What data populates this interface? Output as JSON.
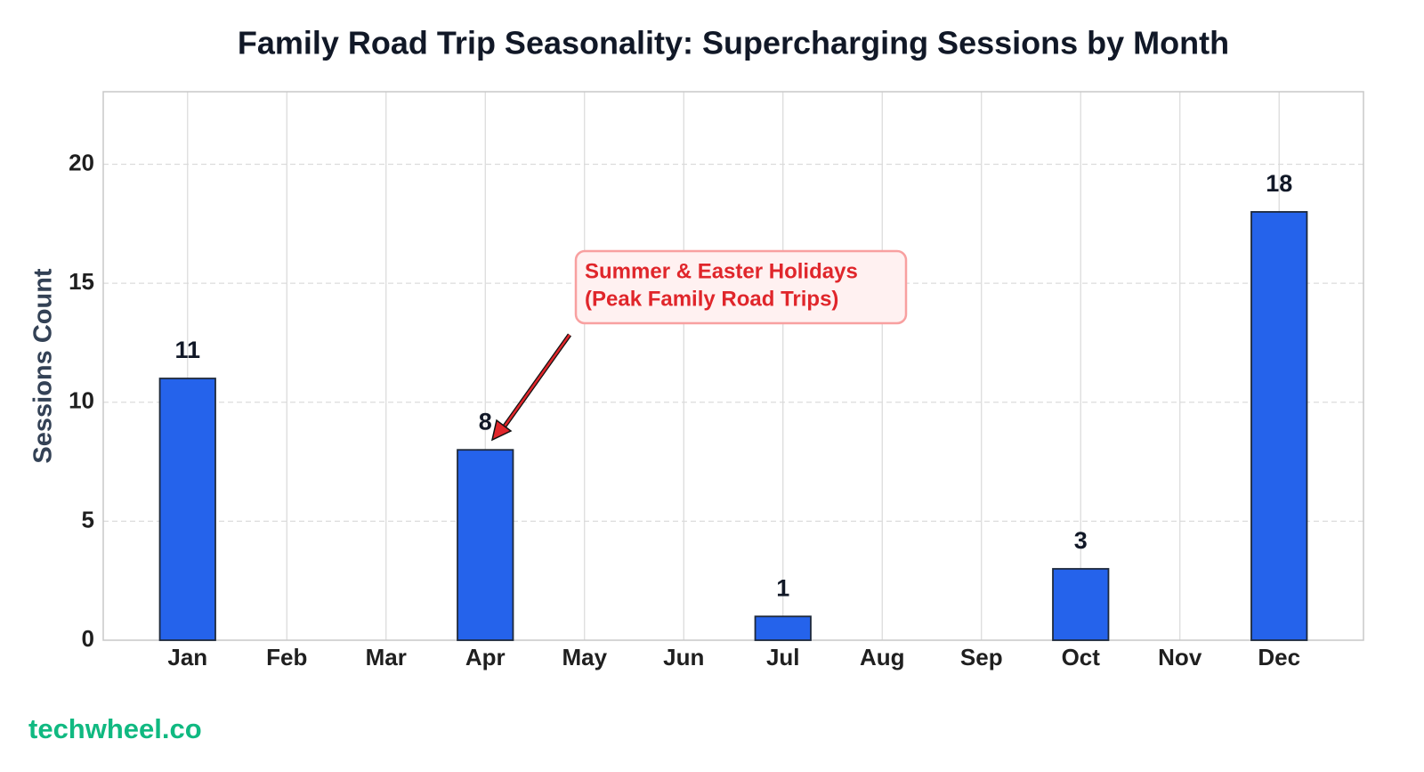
{
  "chart_data": {
    "type": "bar",
    "title": "Family Road Trip Seasonality: Supercharging Sessions by Month",
    "ylabel": "Sessions Count",
    "categories": [
      "Jan",
      "Feb",
      "Mar",
      "Apr",
      "May",
      "Jun",
      "Jul",
      "Aug",
      "Sep",
      "Oct",
      "Nov",
      "Dec"
    ],
    "values": [
      11,
      0,
      0,
      8,
      0,
      0,
      1,
      0,
      0,
      3,
      0,
      18
    ],
    "color": "#2563eb",
    "ylim": [
      0,
      23.05
    ],
    "yticks": [
      0,
      5,
      10,
      15,
      20
    ],
    "grid": true,
    "annotation": [
      "Summer & Easter Holidays",
      "(Peak Family Road Trips)"
    ],
    "watermark": "techwheel.co"
  }
}
